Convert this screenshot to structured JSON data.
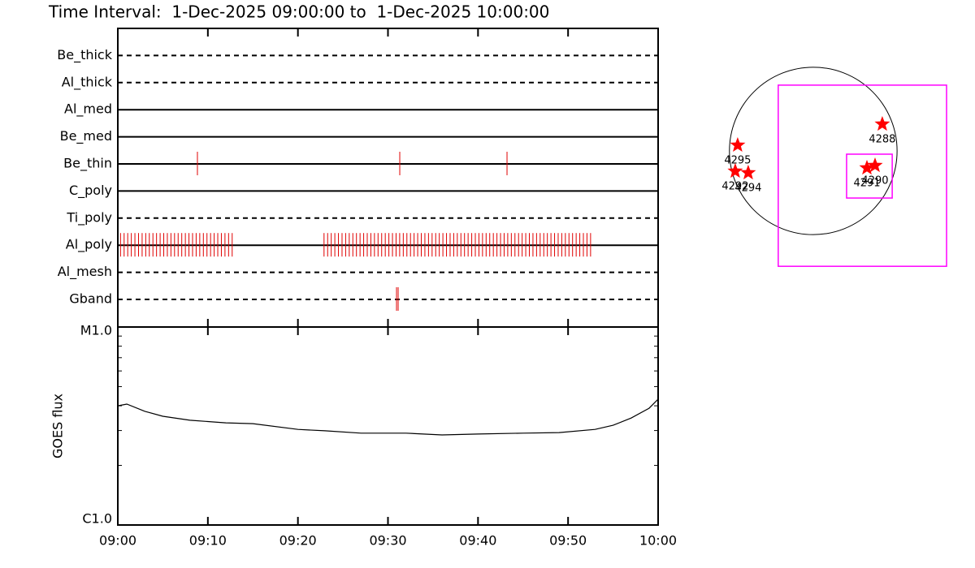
{
  "chart_data": [
    {
      "type": "timeline",
      "title": "Time Interval:  1-Dec-2025 09:00:00 to  1-Dec-2025 10:00:00",
      "color": "#e00000",
      "series": [
        {
          "name": "Be_thick",
          "line": "dashed",
          "values": []
        },
        {
          "name": "Al_thick",
          "line": "dashed",
          "values": []
        },
        {
          "name": "Al_med",
          "line": "solid",
          "values": []
        },
        {
          "name": "Be_med",
          "line": "solid",
          "values": []
        },
        {
          "name": "Be_thin",
          "line": "solid",
          "values": [
            8.84,
            31.31,
            43.22
          ]
        },
        {
          "name": "C_poly",
          "line": "solid",
          "values": []
        },
        {
          "name": "Ti_poly",
          "line": "dashed",
          "values": []
        },
        {
          "name": "Al_poly",
          "line": "solid",
          "values": [
            0.3,
            0.7,
            1.1,
            1.5,
            1.9,
            2.3,
            2.7,
            3.1,
            3.5,
            3.9,
            4.3,
            4.7,
            5.1,
            5.5,
            5.9,
            6.3,
            6.7,
            7.1,
            7.5,
            7.9,
            8.3,
            8.7,
            9.1,
            9.5,
            9.9,
            10.3,
            10.7,
            11.1,
            11.5,
            11.9,
            12.3,
            12.7,
            22.9,
            23.3,
            23.7,
            24.1,
            24.5,
            24.9,
            25.3,
            25.7,
            26.1,
            26.5,
            26.9,
            27.3,
            27.7,
            28.1,
            28.5,
            28.9,
            29.3,
            29.7,
            30.1,
            30.5,
            30.9,
            31.3,
            31.7,
            32.1,
            32.5,
            32.9,
            33.3,
            33.7,
            34.1,
            34.5,
            34.9,
            35.3,
            35.7,
            36.1,
            36.5,
            36.9,
            37.3,
            37.7,
            38.1,
            38.5,
            38.9,
            39.3,
            39.7,
            40.1,
            40.5,
            40.9,
            41.3,
            41.7,
            42.1,
            42.5,
            42.9,
            43.3,
            43.7,
            44.1,
            44.5,
            44.9,
            45.3,
            45.7,
            46.1,
            46.5,
            46.9,
            47.3,
            47.7,
            48.1,
            48.5,
            48.9,
            49.3,
            49.7,
            50.1,
            50.5,
            50.9,
            51.3,
            51.7,
            52.1,
            52.5
          ]
        },
        {
          "name": "Al_mesh",
          "line": "dashed",
          "values": []
        },
        {
          "name": "Gband",
          "line": "dashed",
          "values": [
            30.95,
            31.13
          ]
        }
      ]
    },
    {
      "type": "line",
      "ylabel": "GOES flux",
      "color": "#000000",
      "log_y": true,
      "x": [
        0,
        1,
        3,
        5,
        8,
        12,
        15,
        20,
        23,
        27,
        32,
        36,
        40,
        45,
        49,
        53,
        55,
        57,
        59,
        60
      ],
      "values": [
        4e-06,
        4.08e-06,
        3.75e-06,
        3.54e-06,
        3.38e-06,
        3.28e-06,
        3.25e-06,
        3.04e-06,
        2.99e-06,
        2.91e-06,
        2.91e-06,
        2.85e-06,
        2.88e-06,
        2.91e-06,
        2.93e-06,
        3.04e-06,
        3.19e-06,
        3.47e-06,
        3.89e-06,
        4.32e-06
      ],
      "xlim": [
        0,
        60
      ],
      "xticks": [
        {
          "value": 0,
          "label": "09:00"
        },
        {
          "value": 10,
          "label": "09:10"
        },
        {
          "value": 20,
          "label": "09:20"
        },
        {
          "value": 30,
          "label": "09:30"
        },
        {
          "value": 40,
          "label": "09:40"
        },
        {
          "value": 50,
          "label": "09:50"
        },
        {
          "value": 60,
          "label": "10:00"
        }
      ],
      "ylim": [
        1e-06,
        1e-05
      ],
      "yticks": [
        {
          "value": 1e-06,
          "label": "C1.0"
        },
        {
          "value": 1e-05,
          "label": "M1.0"
        }
      ],
      "yminorticks": [
        2e-06,
        3e-06,
        4e-06,
        5e-06,
        6e-06,
        7e-06,
        8e-06,
        9e-06
      ]
    },
    {
      "type": "scatter",
      "xlim": [
        -1150,
        1560
      ],
      "ylim": [
        -1470,
        1200
      ],
      "disk_radius": 981,
      "color": "#ff0000",
      "box_color": "#ff00ff",
      "x": [
        808,
        -885,
        -913,
        -761,
        628,
        723
      ],
      "values": [
        314,
        67,
        -238,
        -257,
        -200,
        -171
      ],
      "labels": [
        "4288",
        "4295",
        "4292",
        "4294",
        "4291",
        "4290"
      ],
      "boxes": [
        {
          "x": [
            -410,
            1560
          ],
          "y": [
            -1352,
            771
          ]
        },
        {
          "x": [
            390,
            924
          ],
          "y": [
            -552,
            -38
          ]
        }
      ]
    }
  ]
}
